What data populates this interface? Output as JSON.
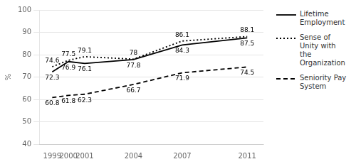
{
  "chart_data": {
    "type": "line",
    "x": [
      1999,
      2000,
      2001,
      2004,
      2007,
      2011
    ],
    "xlim": [
      1998.2,
      2012.0
    ],
    "xticks": [
      1999,
      2000,
      2001,
      2004,
      2007,
      2011
    ],
    "ylim": [
      40,
      100
    ],
    "yticks": [
      40,
      50,
      60,
      70,
      80,
      90,
      100
    ],
    "y_label": "%",
    "grid": "y",
    "legend": "right",
    "data_labels": true,
    "series": [
      {
        "name": "Lifetime\nEmployment",
        "color": "#000000",
        "line_style": "solid",
        "values": [
          72.3,
          76.9,
          76.1,
          77.8,
          84.3,
          87.5
        ]
      },
      {
        "name": "Sense of\nUnity with\nthe\nOrganization",
        "color": "#000000",
        "line_style": "dotted",
        "values": [
          74.6,
          77.5,
          79.1,
          78,
          86.1,
          88.1
        ]
      },
      {
        "name": "Seniority Pay\nSystem",
        "color": "#000000",
        "line_style": "dashed",
        "values": [
          60.8,
          61.8,
          62.3,
          66.7,
          71.9,
          74.5
        ]
      }
    ]
  }
}
